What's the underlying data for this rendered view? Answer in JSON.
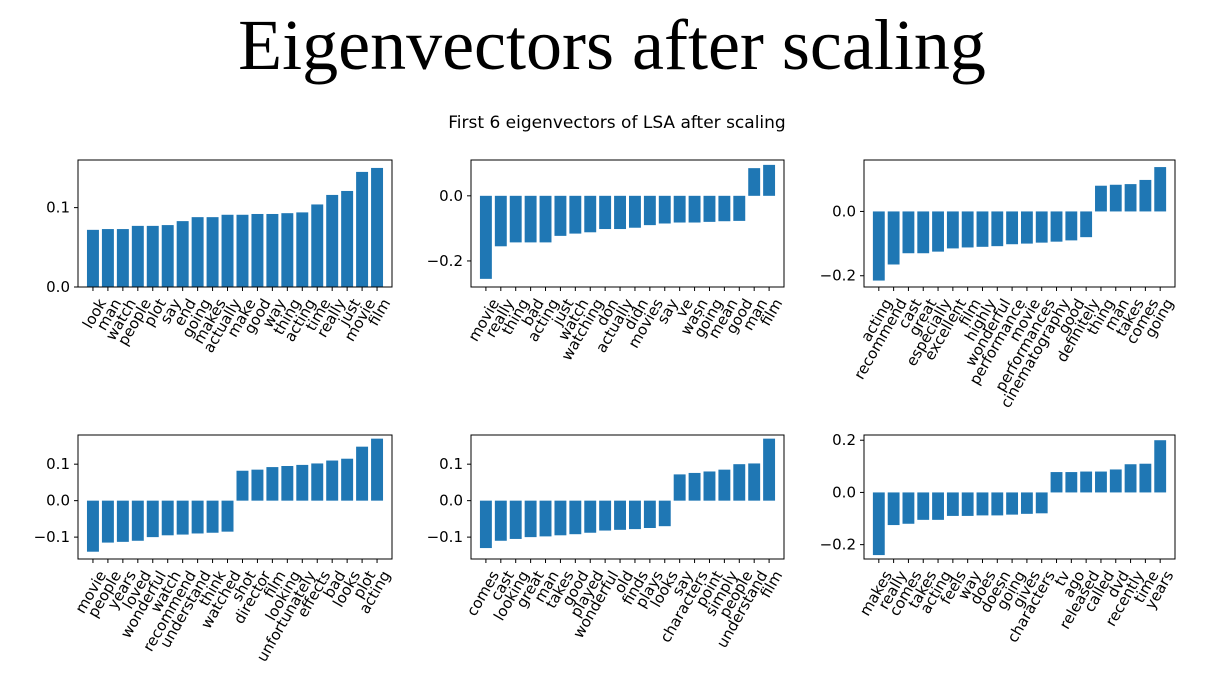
{
  "slide": {
    "title": "Eigenvectors after scaling"
  },
  "chart_data": {
    "type": "bar",
    "suptitle": "First 6 eigenvectors of LSA after scaling",
    "bar_color": "#1f77b4",
    "subplots": [
      {
        "categories": [
          "look",
          "man",
          "watch",
          "people",
          "plot",
          "say",
          "end",
          "going",
          "makes",
          "actually",
          "make",
          "good",
          "way",
          "thing",
          "acting",
          "time",
          "really",
          "just",
          "movie",
          "film"
        ],
        "values": [
          0.072,
          0.073,
          0.073,
          0.077,
          0.077,
          0.078,
          0.083,
          0.088,
          0.088,
          0.091,
          0.091,
          0.092,
          0.092,
          0.093,
          0.094,
          0.104,
          0.116,
          0.121,
          0.145,
          0.15
        ],
        "ylim": [
          0,
          0.16
        ],
        "yticks": [
          0.0,
          0.1
        ],
        "ytick_labels": [
          "0.0",
          "0.1"
        ]
      },
      {
        "categories": [
          "movie",
          "really",
          "thing",
          "bad",
          "acting",
          "just",
          "watch",
          "watching",
          "don",
          "actually",
          "didn",
          "movies",
          "say",
          "ve",
          "wasn",
          "going",
          "mean",
          "good",
          "man",
          "film"
        ],
        "values": [
          -0.255,
          -0.155,
          -0.143,
          -0.143,
          -0.143,
          -0.123,
          -0.116,
          -0.112,
          -0.102,
          -0.102,
          -0.098,
          -0.09,
          -0.085,
          -0.082,
          -0.082,
          -0.08,
          -0.078,
          -0.077,
          0.085,
          0.095
        ],
        "ylim": [
          -0.28,
          0.11
        ],
        "yticks": [
          -0.2,
          0.0
        ],
        "ytick_labels": [
          "−0.2",
          "0.0"
        ]
      },
      {
        "categories": [
          "acting",
          "recommend",
          "cast",
          "great",
          "especially",
          "excellent",
          "film",
          "highly",
          "wonderful",
          "performance",
          "movie",
          "performances",
          "cinematography",
          "good",
          "definitely",
          "thing",
          "man",
          "takes",
          "comes",
          "going"
        ],
        "values": [
          -0.215,
          -0.165,
          -0.13,
          -0.13,
          -0.125,
          -0.115,
          -0.112,
          -0.11,
          -0.108,
          -0.102,
          -0.1,
          -0.097,
          -0.094,
          -0.09,
          -0.08,
          0.08,
          0.083,
          0.085,
          0.098,
          0.138
        ],
        "ylim": [
          -0.235,
          0.16
        ],
        "yticks": [
          -0.2,
          0.0
        ],
        "ytick_labels": [
          "−0.2",
          "0.0"
        ]
      },
      {
        "categories": [
          "movie",
          "people",
          "years",
          "loved",
          "wonderful",
          "watch",
          "recommend",
          "understand",
          "think",
          "watched",
          "shot",
          "director",
          "film",
          "looking",
          "unfortunately",
          "effects",
          "bad",
          "looks",
          "plot",
          "acting"
        ],
        "values": [
          -0.14,
          -0.115,
          -0.113,
          -0.11,
          -0.1,
          -0.095,
          -0.093,
          -0.09,
          -0.088,
          -0.085,
          0.082,
          0.085,
          0.092,
          0.095,
          0.098,
          0.102,
          0.11,
          0.115,
          0.148,
          0.17
        ],
        "ylim": [
          -0.16,
          0.18
        ],
        "yticks": [
          -0.1,
          0.0,
          0.1
        ],
        "ytick_labels": [
          "−0.1",
          "0.0",
          "0.1"
        ]
      },
      {
        "categories": [
          "comes",
          "cast",
          "looking",
          "great",
          "man",
          "takes",
          "good",
          "played",
          "wonderful",
          "old",
          "finds",
          "plays",
          "looks",
          "say",
          "characters",
          "point",
          "simply",
          "people",
          "understand",
          "film"
        ],
        "values": [
          -0.13,
          -0.11,
          -0.105,
          -0.1,
          -0.098,
          -0.095,
          -0.092,
          -0.088,
          -0.082,
          -0.08,
          -0.078,
          -0.075,
          -0.07,
          0.072,
          0.076,
          0.08,
          0.085,
          0.1,
          0.102,
          0.17
        ],
        "ylim": [
          -0.16,
          0.18
        ],
        "yticks": [
          -0.1,
          0.0,
          0.1
        ],
        "ytick_labels": [
          "−0.1",
          "0.0",
          "0.1"
        ]
      },
      {
        "categories": [
          "makes",
          "really",
          "comes",
          "takes",
          "acting",
          "feels",
          "way",
          "does",
          "doesn",
          "going",
          "gives",
          "characters",
          "tv",
          "ago",
          "released",
          "called",
          "dvd",
          "recently",
          "time",
          "years"
        ],
        "values": [
          -0.24,
          -0.125,
          -0.12,
          -0.105,
          -0.105,
          -0.09,
          -0.09,
          -0.088,
          -0.088,
          -0.085,
          -0.082,
          -0.08,
          0.078,
          0.078,
          0.08,
          0.08,
          0.088,
          0.108,
          0.11,
          0.2
        ],
        "ylim": [
          -0.255,
          0.22
        ],
        "yticks": [
          -0.2,
          0.0,
          0.2
        ],
        "ytick_labels": [
          "−0.2",
          "0.0",
          "0.2"
        ]
      }
    ]
  }
}
